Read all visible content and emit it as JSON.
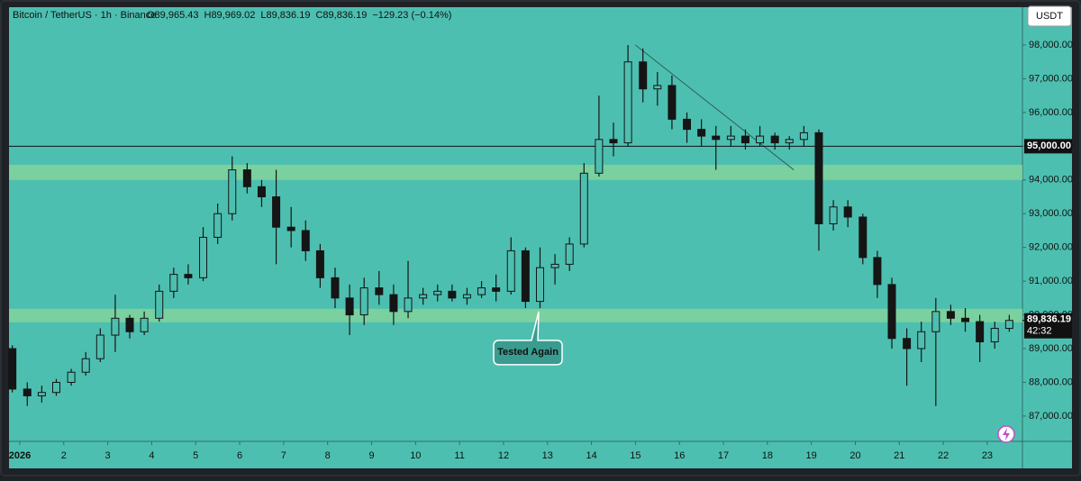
{
  "chart_data": {
    "type": "candlestick",
    "title": "Bitcoin / TetherUS · 1h · Binance",
    "legend_texts": [
      "O89,965.43",
      "H89,969.02",
      "L89,836.19",
      "C89,836.19",
      "−129.23 (−0.14%)"
    ],
    "currency": "USDT",
    "x": [
      0.83,
      1.17,
      1.5,
      1.83,
      2.17,
      2.5,
      2.83,
      3.17,
      3.5,
      3.83,
      4.17,
      4.5,
      4.83,
      5.17,
      5.5,
      5.83,
      6.17,
      6.5,
      6.83,
      7.17,
      7.5,
      7.83,
      8.17,
      8.5,
      8.83,
      9.17,
      9.5,
      9.83,
      10.17,
      10.5,
      10.83,
      11.17,
      11.5,
      11.83,
      12.17,
      12.5,
      12.83,
      13.17,
      13.5,
      13.83,
      14.17,
      14.5,
      14.83,
      15.17,
      15.5,
      15.83,
      16.17,
      16.5,
      16.83,
      17.17,
      17.5,
      17.83,
      18.17,
      18.5,
      18.83,
      19.17,
      19.5,
      19.83,
      20.17,
      20.5,
      20.83,
      21.17,
      21.5,
      21.83,
      22.17,
      22.5,
      22.83,
      23.17,
      23.5
    ],
    "open": [
      89000,
      87800,
      87600,
      87700,
      88000,
      88300,
      88700,
      89400,
      89900,
      89500,
      89900,
      90700,
      91200,
      91100,
      92300,
      93000,
      94300,
      93800,
      93500,
      92600,
      92500,
      91900,
      91100,
      90500,
      90000,
      90800,
      90600,
      90100,
      90500,
      90600,
      90700,
      90500,
      90600,
      90800,
      90700,
      91900,
      90400,
      91400,
      91500,
      92100,
      94200,
      95200,
      95100,
      97500,
      96700,
      96800,
      95800,
      95500,
      95300,
      95200,
      95300,
      95100,
      95300,
      95100,
      95200,
      95400,
      92700,
      93200,
      92900,
      91700,
      90900,
      89300,
      89000,
      89500,
      90100,
      89900,
      89800,
      89200,
      89600
    ],
    "high": [
      89100,
      88000,
      87900,
      88100,
      88400,
      88900,
      89600,
      90600,
      90000,
      90100,
      90900,
      91400,
      91500,
      92600,
      93300,
      94700,
      94500,
      94000,
      94300,
      93200,
      92800,
      92100,
      91400,
      90900,
      91100,
      91300,
      90900,
      91600,
      90800,
      90900,
      90900,
      90800,
      91000,
      91200,
      92300,
      92000,
      92000,
      91800,
      92300,
      94500,
      96500,
      95700,
      98000,
      97900,
      97200,
      97100,
      96000,
      95800,
      95600,
      95600,
      95500,
      95600,
      95400,
      95300,
      95600,
      95500,
      93400,
      93400,
      93000,
      91900,
      91100,
      89600,
      89800,
      90500,
      90300,
      90200,
      90000,
      89800,
      90000
    ],
    "low": [
      87700,
      87300,
      87400,
      87600,
      87900,
      88200,
      88600,
      88900,
      89300,
      89400,
      89800,
      90500,
      90900,
      91000,
      92100,
      92800,
      93600,
      93200,
      91500,
      92000,
      91600,
      90800,
      90200,
      89400,
      89700,
      90300,
      89700,
      89900,
      90300,
      90400,
      90400,
      90300,
      90500,
      90400,
      90600,
      90200,
      90200,
      90900,
      91300,
      92000,
      94100,
      94700,
      95000,
      96300,
      96200,
      95500,
      95100,
      95000,
      94300,
      95000,
      94900,
      95000,
      94900,
      94900,
      95000,
      91900,
      92500,
      92600,
      91500,
      90500,
      89000,
      87900,
      88600,
      87300,
      89700,
      89500,
      88600,
      89000,
      89500
    ],
    "close": [
      87800,
      87600,
      87700,
      88000,
      88300,
      88700,
      89400,
      89900,
      89500,
      89900,
      90700,
      91200,
      91100,
      92300,
      93000,
      94300,
      93800,
      93500,
      92600,
      92500,
      91900,
      91100,
      90500,
      90000,
      90800,
      90600,
      90100,
      90500,
      90600,
      90700,
      90500,
      90600,
      90800,
      90700,
      91900,
      90400,
      91400,
      91500,
      92100,
      94200,
      95200,
      95100,
      97500,
      96700,
      96800,
      95800,
      95500,
      95300,
      95200,
      95300,
      95100,
      95300,
      95100,
      95200,
      95400,
      92700,
      93200,
      92900,
      91700,
      90900,
      89300,
      89000,
      89500,
      90100,
      89900,
      89800,
      89200,
      89600,
      89836.19
    ],
    "color": "#151515",
    "xlim": [
      0.55,
      23.8
    ],
    "ylim": [
      86250,
      99335
    ],
    "xticks": [
      {
        "value": 1,
        "label": "2026"
      },
      2,
      3,
      4,
      5,
      6,
      7,
      8,
      9,
      10,
      11,
      12,
      13,
      14,
      15,
      16,
      17,
      18,
      19,
      20,
      21,
      22,
      23
    ],
    "yticks": [
      {
        "value": 87000,
        "label": "87,000.00"
      },
      {
        "value": 88000,
        "label": "88,000.00"
      },
      {
        "value": 89000,
        "label": "89,000.00"
      },
      {
        "value": 90000,
        "label": "90,000.00"
      },
      {
        "value": 91000,
        "label": "91,000.00"
      },
      {
        "value": 92000,
        "label": "92,000.00"
      },
      {
        "value": 93000,
        "label": "93,000.00"
      },
      {
        "value": 94000,
        "label": "94,000.00"
      },
      {
        "value": 95000,
        "label": "95,000.00"
      },
      {
        "value": 96000,
        "label": "96,000.00"
      },
      {
        "value": 97000,
        "label": "97,000.00"
      },
      {
        "value": 98000,
        "label": "98,000.00"
      }
    ],
    "zones": [
      {
        "from": 94000,
        "to": 94450,
        "color": "#86d49a"
      },
      {
        "from": 89780,
        "to": 90180,
        "color": "#86d49a"
      }
    ],
    "hlines": [
      {
        "value": 95000,
        "label": "95,000.00",
        "color": "#111111"
      }
    ],
    "trendline": {
      "x": [
        15,
        18.6
      ],
      "y": [
        98000,
        94300
      ],
      "color": "#2f5f5a"
    },
    "annotation": {
      "text": "Tested Again",
      "x": 12.8,
      "y": 90100
    },
    "last_price": {
      "value": 89836.19,
      "label": "89,836.19",
      "countdown": "42:32"
    },
    "background": "#4dbfb0"
  }
}
